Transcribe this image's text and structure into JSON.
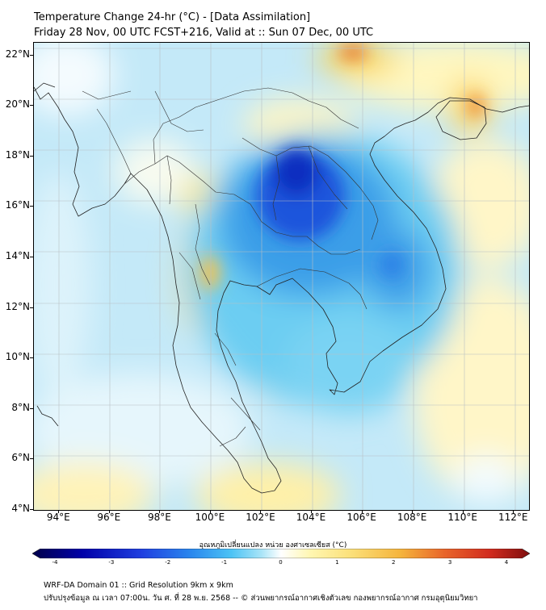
{
  "title": {
    "line1": "Temperature Change 24-hr (°C) - [Data Assimilation]",
    "line2": "Friday 28 Nov, 00 UTC FCST+216, Valid at :: Sun 07 Dec, 00 UTC"
  },
  "map": {
    "lat_labels": [
      "22°N",
      "20°N",
      "18°N",
      "16°N",
      "14°N",
      "12°N",
      "10°N",
      "8°N",
      "6°N",
      "4°N"
    ],
    "lon_labels": [
      "94°E",
      "96°E",
      "98°E",
      "100°E",
      "102°E",
      "104°E",
      "106°E",
      "108°E",
      "110°E",
      "112°E"
    ],
    "lat_range": [
      4,
      22.5
    ],
    "lon_range": [
      93,
      112.6
    ]
  },
  "colorbar": {
    "label": "อุณหภูมิเปลี่ยนแปลง หน่วย องศาเซลเซียส (°C)",
    "ticks": [
      "-4",
      "-3",
      "-2",
      "-1",
      "0",
      "1",
      "2",
      "3",
      "4"
    ],
    "colors": [
      "#00004a",
      "#0000a8",
      "#1f3fe0",
      "#2a88ee",
      "#4cc3f5",
      "#a8e4f7",
      "#ffffff",
      "#fff6b0",
      "#fbe07a",
      "#f5b43c",
      "#e8632a",
      "#d12b1e",
      "#7e0e0e"
    ]
  },
  "footer": {
    "line1": "WRF-DA Domain 01 :: Grid Resolution 9km x 9km",
    "line2": "ปรับปรุงข้อมูล ณ เวลา 07:00น. วัน ศ. ที่ 28 พ.ย. 2568 -- © ส่วนพยากรณ์อากาศเชิงตัวเลข กองพยากรณ์อากาศ กรมอุตุนิยมวิทยา"
  }
}
